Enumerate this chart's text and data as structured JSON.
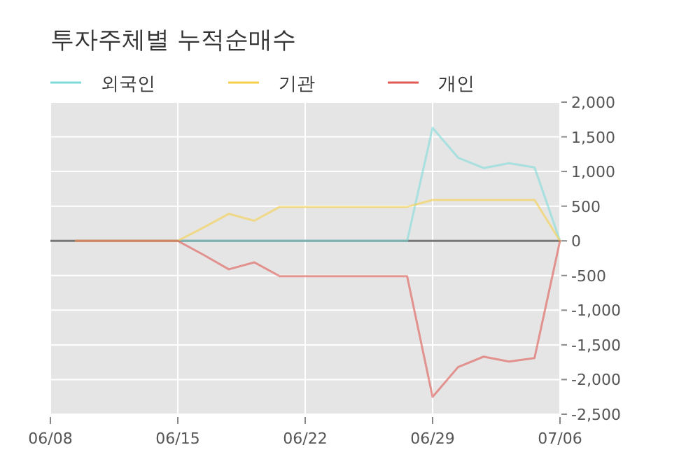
{
  "chart_data": {
    "type": "line",
    "title": "투자주체별 누적순매수",
    "categories": [
      "06/08",
      null,
      null,
      null,
      null,
      "06/15",
      null,
      null,
      null,
      null,
      "06/22",
      null,
      null,
      null,
      null,
      "06/29",
      null,
      null,
      null,
      null,
      "07/06"
    ],
    "series": [
      {
        "name": "외국인",
        "color": "#7fdbda",
        "values": [
          null,
          0,
          0,
          0,
          0,
          0,
          0,
          0,
          0,
          0,
          0,
          0,
          0,
          0,
          0,
          1630,
          1200,
          1050,
          1120,
          1060,
          0
        ]
      },
      {
        "name": "기관",
        "color": "#f5d04a",
        "values": [
          null,
          0,
          0,
          0,
          0,
          0,
          190,
          390,
          290,
          490,
          490,
          490,
          490,
          490,
          490,
          590,
          590,
          590,
          590,
          590,
          0
        ]
      },
      {
        "name": "개인",
        "color": "#e05a54",
        "values": [
          null,
          0,
          0,
          0,
          0,
          0,
          -200,
          -410,
          -310,
          -510,
          -510,
          -510,
          -510,
          -510,
          -510,
          -2250,
          -1820,
          -1670,
          -1740,
          -1690,
          0
        ]
      }
    ],
    "ylim": [
      -2500,
      2000
    ],
    "yticks": [
      {
        "value": 2000,
        "label": "2,000"
      },
      {
        "value": 1500,
        "label": "1,500"
      },
      {
        "value": 1000,
        "label": "1,000"
      },
      {
        "value": 500,
        "label": "500"
      },
      {
        "value": 0,
        "label": "0"
      },
      {
        "value": -500,
        "label": "-500"
      },
      {
        "value": -1000,
        "label": "-1,000"
      },
      {
        "value": -1500,
        "label": "-1,500"
      },
      {
        "value": -2000,
        "label": "-2,000"
      },
      {
        "value": -2500,
        "label": "-2,500"
      }
    ],
    "ref_lines": [
      {
        "axis": "y",
        "value": 0,
        "color": "#777777"
      }
    ],
    "grid": true,
    "legend": "top left",
    "marker": "none",
    "line_style": "solid"
  }
}
